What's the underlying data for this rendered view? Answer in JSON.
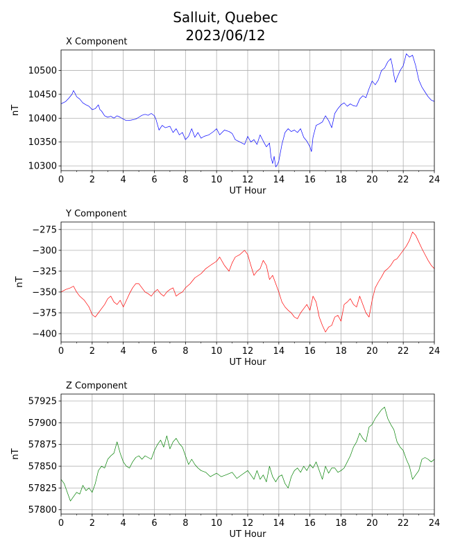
{
  "figure": {
    "title_line1": "Salluit, Quebec",
    "title_line2": "2023/06/12"
  },
  "chart_data": [
    {
      "type": "line",
      "title": "X Component",
      "xlabel": "UT Hour",
      "ylabel": "nT",
      "color": "#0000ff",
      "xlim": [
        0,
        24
      ],
      "ylim": [
        10290,
        10543
      ],
      "xticks": [
        0,
        2,
        4,
        6,
        8,
        10,
        12,
        14,
        16,
        18,
        20,
        22,
        24
      ],
      "yticks": [
        10300,
        10350,
        10400,
        10450,
        10500
      ],
      "grid": true,
      "series": [
        {
          "x": [
            0,
            0.3,
            0.5,
            0.7,
            0.8,
            0.9,
            1.0,
            1.2,
            1.4,
            1.6,
            1.8,
            2.0,
            2.2,
            2.4,
            2.5,
            2.6,
            2.8,
            3.0,
            3.2,
            3.4,
            3.6,
            3.8,
            4.0,
            4.2,
            4.5,
            4.8,
            5.0,
            5.2,
            5.4,
            5.6,
            5.8,
            6.0,
            6.1,
            6.3,
            6.5,
            6.7,
            7.0,
            7.2,
            7.4,
            7.6,
            7.8,
            8.0,
            8.2,
            8.4,
            8.6,
            8.8,
            9.0,
            9.2,
            9.5,
            9.8,
            10.0,
            10.2,
            10.5,
            10.8,
            11.0,
            11.2,
            11.5,
            11.8,
            12.0,
            12.2,
            12.4,
            12.6,
            12.8,
            13.0,
            13.2,
            13.4,
            13.5,
            13.6,
            13.7,
            13.8,
            13.9,
            14.0,
            14.2,
            14.4,
            14.6,
            14.8,
            15.0,
            15.2,
            15.4,
            15.6,
            15.8,
            16.0,
            16.1,
            16.2,
            16.4,
            16.6,
            16.8,
            17.0,
            17.2,
            17.4,
            17.6,
            17.8,
            18.0,
            18.2,
            18.4,
            18.6,
            18.8,
            19.0,
            19.2,
            19.4,
            19.6,
            19.8,
            20.0,
            20.2,
            20.4,
            20.6,
            20.8,
            21.0,
            21.2,
            21.3,
            21.4,
            21.5,
            21.6,
            21.8,
            22.0,
            22.2,
            22.4,
            22.6,
            22.8,
            23.0,
            23.2,
            23.4,
            23.6,
            23.8,
            24.0
          ],
          "y": [
            10430,
            10435,
            10442,
            10450,
            10458,
            10452,
            10445,
            10440,
            10432,
            10428,
            10425,
            10418,
            10420,
            10428,
            10418,
            10415,
            10405,
            10402,
            10404,
            10400,
            10405,
            10402,
            10398,
            10395,
            10396,
            10398,
            10402,
            10406,
            10408,
            10406,
            10410,
            10405,
            10398,
            10375,
            10385,
            10380,
            10383,
            10370,
            10378,
            10365,
            10370,
            10355,
            10362,
            10378,
            10360,
            10370,
            10358,
            10362,
            10365,
            10372,
            10378,
            10365,
            10375,
            10372,
            10368,
            10355,
            10350,
            10345,
            10362,
            10350,
            10355,
            10345,
            10365,
            10352,
            10340,
            10348,
            10318,
            10305,
            10320,
            10298,
            10302,
            10310,
            10345,
            10370,
            10378,
            10372,
            10375,
            10370,
            10378,
            10360,
            10352,
            10340,
            10330,
            10360,
            10385,
            10388,
            10392,
            10405,
            10395,
            10380,
            10410,
            10420,
            10428,
            10432,
            10425,
            10430,
            10426,
            10425,
            10440,
            10447,
            10443,
            10462,
            10478,
            10470,
            10480,
            10500,
            10505,
            10518,
            10525,
            10510,
            10490,
            10475,
            10485,
            10500,
            10510,
            10535,
            10528,
            10532,
            10510,
            10480,
            10465,
            10455,
            10445,
            10438,
            10435
          ]
        }
      ]
    },
    {
      "type": "line",
      "title": "Y Component",
      "xlabel": "UT Hour",
      "ylabel": "nT",
      "color": "#ff0000",
      "xlim": [
        0,
        24
      ],
      "ylim": [
        -410,
        -266
      ],
      "xticks": [
        0,
        2,
        4,
        6,
        8,
        10,
        12,
        14,
        16,
        18,
        20,
        22,
        24
      ],
      "yticks": [
        -400,
        -375,
        -350,
        -325,
        -300,
        -275
      ],
      "grid": true,
      "series": [
        {
          "x": [
            0,
            0.3,
            0.6,
            0.8,
            1.0,
            1.2,
            1.5,
            1.8,
            2.0,
            2.2,
            2.4,
            2.6,
            2.8,
            3.0,
            3.2,
            3.4,
            3.6,
            3.8,
            4.0,
            4.2,
            4.4,
            4.6,
            4.8,
            5.0,
            5.2,
            5.4,
            5.6,
            5.8,
            6.0,
            6.2,
            6.4,
            6.6,
            6.8,
            7.0,
            7.2,
            7.4,
            7.6,
            7.8,
            8.0,
            8.3,
            8.6,
            9.0,
            9.3,
            9.6,
            10.0,
            10.2,
            10.5,
            10.8,
            11.0,
            11.2,
            11.5,
            11.8,
            12.0,
            12.2,
            12.4,
            12.6,
            12.8,
            13.0,
            13.2,
            13.4,
            13.6,
            13.8,
            14.0,
            14.2,
            14.4,
            14.6,
            14.8,
            15.0,
            15.2,
            15.4,
            15.6,
            15.8,
            16.0,
            16.2,
            16.4,
            16.6,
            16.8,
            17.0,
            17.2,
            17.4,
            17.6,
            17.8,
            18.0,
            18.2,
            18.4,
            18.6,
            18.8,
            19.0,
            19.2,
            19.4,
            19.6,
            19.8,
            20.0,
            20.2,
            20.4,
            20.6,
            20.8,
            21.0,
            21.2,
            21.4,
            21.6,
            21.8,
            22.0,
            22.2,
            22.4,
            22.6,
            22.8,
            23.0,
            23.2,
            23.4,
            23.6,
            23.8,
            24.0
          ],
          "y": [
            -350,
            -347,
            -345,
            -343,
            -350,
            -355,
            -360,
            -368,
            -377,
            -380,
            -375,
            -370,
            -365,
            -358,
            -355,
            -362,
            -365,
            -360,
            -368,
            -360,
            -352,
            -345,
            -340,
            -340,
            -345,
            -350,
            -352,
            -355,
            -350,
            -347,
            -352,
            -355,
            -350,
            -347,
            -345,
            -355,
            -352,
            -350,
            -345,
            -340,
            -333,
            -328,
            -322,
            -318,
            -313,
            -308,
            -318,
            -325,
            -315,
            -308,
            -305,
            -300,
            -305,
            -318,
            -330,
            -325,
            -322,
            -312,
            -318,
            -335,
            -330,
            -340,
            -350,
            -362,
            -368,
            -372,
            -375,
            -380,
            -382,
            -375,
            -370,
            -365,
            -372,
            -355,
            -362,
            -380,
            -390,
            -398,
            -392,
            -390,
            -380,
            -378,
            -385,
            -365,
            -362,
            -358,
            -365,
            -368,
            -355,
            -365,
            -375,
            -380,
            -360,
            -345,
            -338,
            -332,
            -325,
            -322,
            -318,
            -312,
            -310,
            -305,
            -300,
            -295,
            -288,
            -278,
            -282,
            -290,
            -298,
            -305,
            -312,
            -318,
            -322
          ]
        }
      ]
    },
    {
      "type": "line",
      "title": "Z Component",
      "xlabel": "UT Hour",
      "ylabel": "nT",
      "color": "#008000",
      "xlim": [
        0,
        24
      ],
      "ylim": [
        57795,
        57933
      ],
      "xticks": [
        0,
        2,
        4,
        6,
        8,
        10,
        12,
        14,
        16,
        18,
        20,
        22,
        24
      ],
      "yticks": [
        57800,
        57825,
        57850,
        57875,
        57900,
        57925
      ],
      "grid": true,
      "series": [
        {
          "x": [
            0,
            0.2,
            0.4,
            0.6,
            0.8,
            1.0,
            1.2,
            1.4,
            1.6,
            1.8,
            2.0,
            2.2,
            2.4,
            2.6,
            2.8,
            3.0,
            3.2,
            3.4,
            3.6,
            3.8,
            4.0,
            4.2,
            4.4,
            4.6,
            4.8,
            5.0,
            5.2,
            5.4,
            5.6,
            5.8,
            6.0,
            6.2,
            6.4,
            6.6,
            6.8,
            7.0,
            7.2,
            7.4,
            7.6,
            7.8,
            8.0,
            8.2,
            8.4,
            8.6,
            8.8,
            9.0,
            9.3,
            9.6,
            10.0,
            10.3,
            10.6,
            11.0,
            11.3,
            11.6,
            12.0,
            12.2,
            12.4,
            12.6,
            12.8,
            13.0,
            13.2,
            13.4,
            13.6,
            13.8,
            14.0,
            14.2,
            14.4,
            14.6,
            14.8,
            15.0,
            15.2,
            15.4,
            15.6,
            15.8,
            16.0,
            16.2,
            16.4,
            16.6,
            16.8,
            17.0,
            17.2,
            17.4,
            17.6,
            17.8,
            18.0,
            18.2,
            18.4,
            18.6,
            18.8,
            19.0,
            19.2,
            19.4,
            19.6,
            19.8,
            20.0,
            20.2,
            20.4,
            20.6,
            20.8,
            21.0,
            21.2,
            21.4,
            21.6,
            21.8,
            22.0,
            22.2,
            22.4,
            22.6,
            22.8,
            23.0,
            23.2,
            23.4,
            23.6,
            23.8,
            24.0
          ],
          "y": [
            57835,
            57830,
            57820,
            57810,
            57815,
            57820,
            57818,
            57828,
            57822,
            57825,
            57820,
            57830,
            57845,
            57850,
            57848,
            57858,
            57862,
            57865,
            57878,
            57865,
            57855,
            57850,
            57848,
            57855,
            57860,
            57862,
            57858,
            57862,
            57860,
            57858,
            57868,
            57875,
            57880,
            57872,
            57885,
            57870,
            57878,
            57882,
            57876,
            57872,
            57862,
            57852,
            57858,
            57852,
            57848,
            57845,
            57843,
            57838,
            57842,
            57838,
            57840,
            57843,
            57836,
            57840,
            57845,
            57840,
            57835,
            57845,
            57835,
            57840,
            57832,
            57850,
            57838,
            57832,
            57838,
            57840,
            57830,
            57825,
            57838,
            57845,
            57848,
            57843,
            57850,
            57845,
            57852,
            57848,
            57855,
            57845,
            57835,
            57850,
            57842,
            57848,
            57848,
            57843,
            57845,
            57848,
            57855,
            57862,
            57872,
            57878,
            57888,
            57882,
            57878,
            57895,
            57898,
            57905,
            57910,
            57915,
            57918,
            57905,
            57898,
            57892,
            57878,
            57872,
            57868,
            57858,
            57850,
            57835,
            57840,
            57845,
            57858,
            57860,
            57858,
            57855,
            57858
          ]
        }
      ]
    }
  ]
}
